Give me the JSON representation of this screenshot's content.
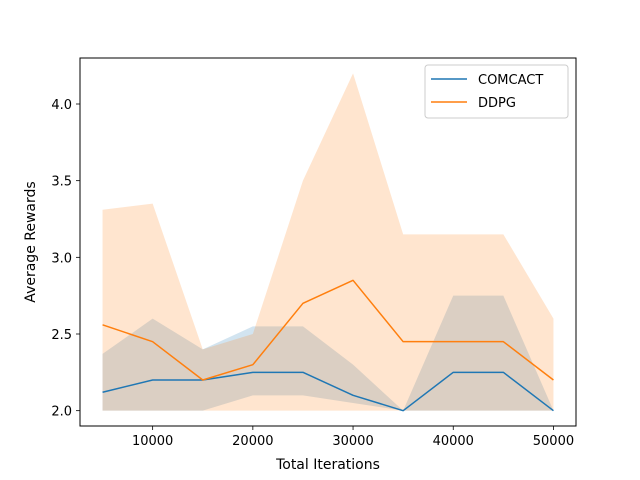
{
  "chart_data": {
    "type": "line",
    "xlabel": "Total Iterations",
    "ylabel": "Average Rewards",
    "xlim": [
      2750,
      52250
    ],
    "ylim": [
      1.9,
      4.3
    ],
    "xticks": [
      10000,
      20000,
      30000,
      40000,
      50000
    ],
    "xtick_labels": [
      "10000",
      "20000",
      "30000",
      "40000",
      "50000"
    ],
    "yticks": [
      2.0,
      2.5,
      3.0,
      3.5,
      4.0
    ],
    "ytick_labels": [
      "2.0",
      "2.5",
      "3.0",
      "3.5",
      "4.0"
    ],
    "grid": false,
    "legend_position": "top-right",
    "x": [
      5000,
      10000,
      15000,
      20000,
      25000,
      30000,
      35000,
      40000,
      45000,
      50000
    ],
    "series": [
      {
        "name": "COMCACT",
        "color": "#1f77b4",
        "values": [
          2.12,
          2.2,
          2.2,
          2.25,
          2.25,
          2.1,
          2.0,
          2.25,
          2.25,
          2.0
        ],
        "lower": [
          2.0,
          2.0,
          2.0,
          2.1,
          2.1,
          2.05,
          2.0,
          2.0,
          2.0,
          2.0
        ],
        "upper": [
          2.37,
          2.6,
          2.4,
          2.55,
          2.55,
          2.3,
          2.0,
          2.75,
          2.75,
          2.0
        ]
      },
      {
        "name": "DDPG",
        "color": "#ff7f0e",
        "values": [
          2.56,
          2.45,
          2.2,
          2.3,
          2.7,
          2.85,
          2.45,
          2.45,
          2.45,
          2.2
        ],
        "lower": [
          2.0,
          2.0,
          2.0,
          2.0,
          2.0,
          2.0,
          2.0,
          2.0,
          2.0,
          2.0
        ],
        "upper": [
          3.31,
          3.35,
          2.4,
          2.5,
          3.5,
          4.2,
          3.15,
          3.15,
          3.15,
          2.6
        ]
      }
    ]
  }
}
